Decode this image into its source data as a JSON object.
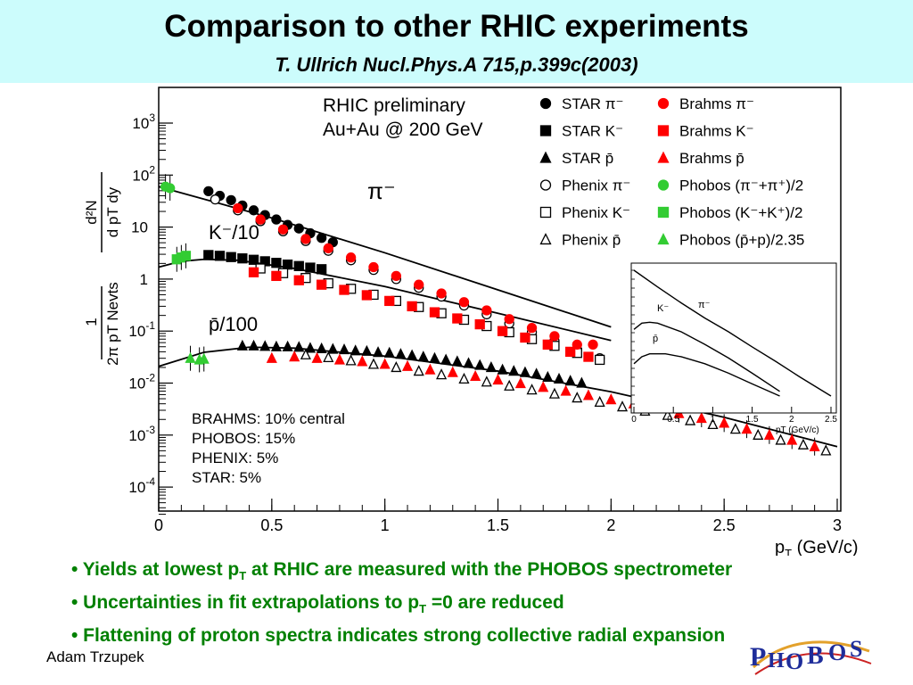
{
  "slide": {
    "title": "Comparison to other RHIC experiments",
    "subtitle": "T. Ullrich Nucl.Phys.A 715,p.399c(2003)",
    "author": "Adam Trzupek",
    "logo_text": "PHOBOS",
    "bullets": [
      {
        "pre": "• Yields at lowest p",
        "sub": "T",
        "post": " at RHIC are measured with the PHOBOS spectrometer"
      },
      {
        "pre": "• Uncertainties in fit extrapolations to p",
        "sub": "T",
        "post": " =0 are reduced"
      },
      {
        "pre": "• Flattening of proton spectra indicates strong collective radial expansion",
        "sub": "",
        "post": ""
      }
    ]
  },
  "chart_data": [
    {
      "type": "scatter",
      "plot_annotations": {
        "main": [
          "RHIC preliminary",
          "Au+Au @ 200 GeV"
        ],
        "centrality": [
          "BRAHMS: 10% central",
          "PHOBOS: 15%",
          "PHENIX:   5%",
          "STAR:       5%"
        ],
        "curve_labels": {
          "pi": "π⁻",
          "k": "K⁻/10",
          "p": "p̄/100"
        }
      },
      "xlabel": "pT (GeV/c)",
      "ylabel": "(1/2π pT Nevts) d²N/(dpT dy)",
      "xlim": [
        0,
        3
      ],
      "ylim": [
        3e-05,
        1500
      ],
      "y_scale": "log",
      "x_ticks": [
        "0",
        "0.5",
        "1",
        "1.5",
        "2",
        "2.5",
        "3"
      ],
      "y_ticks": [
        {
          "v": 1000,
          "b": "10",
          "e": "3"
        },
        {
          "v": 100,
          "b": "10",
          "e": "2"
        },
        {
          "v": 10,
          "b": "10",
          "e": ""
        },
        {
          "v": 1,
          "b": "1",
          "e": ""
        },
        {
          "v": 0.1,
          "b": "10",
          "e": "-1"
        },
        {
          "v": 0.01,
          "b": "10",
          "e": "-2"
        },
        {
          "v": 0.001,
          "b": "10",
          "e": "-3"
        },
        {
          "v": 0.0001,
          "b": "10",
          "e": "-4"
        }
      ],
      "legend_position": "top-right",
      "colors": {
        "star": "#000000",
        "brahms": "#ff0000",
        "phobos": "#33cc33",
        "phenix": "#000000"
      },
      "series": [
        {
          "name": "STAR π⁻",
          "particle": "pi",
          "marker": "circle",
          "color": "#000000",
          "filled": true,
          "x": [
            0.22,
            0.27,
            0.32,
            0.37,
            0.42,
            0.47,
            0.52,
            0.57,
            0.62,
            0.67,
            0.72,
            0.77
          ],
          "y": [
            49,
            40,
            33,
            26,
            21,
            17,
            14,
            11,
            9.4,
            7.6,
            6.2,
            5.1
          ]
        },
        {
          "name": "STAR K⁻",
          "particle": "k",
          "marker": "square",
          "color": "#000000",
          "filled": true,
          "x": [
            0.22,
            0.27,
            0.32,
            0.37,
            0.42,
            0.47,
            0.52,
            0.57,
            0.62,
            0.67,
            0.72
          ],
          "y": [
            2.9,
            2.8,
            2.65,
            2.5,
            2.35,
            2.2,
            2.05,
            1.9,
            1.78,
            1.66,
            1.55
          ]
        },
        {
          "name": "STAR p̄",
          "particle": "p",
          "marker": "triangle",
          "color": "#000000",
          "filled": true,
          "x": [
            0.37,
            0.42,
            0.47,
            0.52,
            0.57,
            0.62,
            0.67,
            0.72,
            0.77,
            0.82,
            0.87,
            0.92,
            0.97,
            1.02,
            1.07,
            1.12,
            1.17,
            1.22,
            1.27,
            1.32,
            1.37,
            1.42,
            1.47,
            1.52,
            1.57,
            1.62,
            1.67,
            1.72,
            1.77,
            1.82,
            1.87
          ],
          "y": [
            0.052,
            0.052,
            0.051,
            0.05,
            0.05,
            0.049,
            0.047,
            0.046,
            0.045,
            0.044,
            0.042,
            0.041,
            0.039,
            0.038,
            0.036,
            0.034,
            0.032,
            0.03,
            0.028,
            0.026,
            0.024,
            0.022,
            0.02,
            0.018,
            0.017,
            0.016,
            0.015,
            0.013,
            0.012,
            0.011,
            0.01
          ]
        },
        {
          "name": "Phenix π⁻",
          "particle": "pi",
          "marker": "circle",
          "color": "#000000",
          "filled": false,
          "x": [
            0.25,
            0.35,
            0.45,
            0.55,
            0.65,
            0.75,
            0.85,
            0.95,
            1.05,
            1.15,
            1.25,
            1.35,
            1.45,
            1.55,
            1.65,
            1.75,
            1.85,
            1.95
          ],
          "y": [
            34,
            21,
            13,
            8.3,
            5.4,
            3.5,
            2.3,
            1.5,
            1.0,
            0.68,
            0.46,
            0.31,
            0.21,
            0.14,
            0.095,
            0.065,
            0.044,
            0.03
          ]
        },
        {
          "name": "Phenix K⁻",
          "particle": "k",
          "marker": "square",
          "color": "#000000",
          "filled": false,
          "x": [
            0.45,
            0.55,
            0.65,
            0.75,
            0.85,
            0.95,
            1.05,
            1.15,
            1.25,
            1.35,
            1.45,
            1.55,
            1.65,
            1.75,
            1.85,
            1.95
          ],
          "y": [
            1.6,
            1.3,
            1.05,
            0.83,
            0.65,
            0.5,
            0.38,
            0.29,
            0.22,
            0.165,
            0.125,
            0.095,
            0.07,
            0.052,
            0.038,
            0.028
          ]
        },
        {
          "name": "Phenix p̄",
          "particle": "p",
          "marker": "triangle",
          "color": "#000000",
          "filled": false,
          "x": [
            0.65,
            0.75,
            0.85,
            0.95,
            1.05,
            1.15,
            1.25,
            1.35,
            1.45,
            1.55,
            1.65,
            1.75,
            1.85,
            1.95,
            2.05,
            2.15,
            2.25,
            2.35,
            2.45,
            2.55,
            2.65,
            2.75,
            2.85,
            2.95
          ],
          "y": [
            0.035,
            0.031,
            0.027,
            0.023,
            0.02,
            0.017,
            0.0145,
            0.012,
            0.0105,
            0.0088,
            0.0074,
            0.0062,
            0.0052,
            0.0043,
            0.0035,
            0.0029,
            0.0024,
            0.0019,
            0.0016,
            0.0013,
            0.001,
            0.0008,
            0.00065,
            0.0005
          ]
        },
        {
          "name": "Brahms π⁻",
          "particle": "pi",
          "marker": "circle",
          "color": "#ff0000",
          "filled": true,
          "x": [
            0.35,
            0.45,
            0.55,
            0.65,
            0.75,
            0.85,
            0.95,
            1.05,
            1.15,
            1.25,
            1.35,
            1.45,
            1.55,
            1.65,
            1.75,
            1.85,
            1.92
          ],
          "y": [
            23,
            14,
            9.0,
            5.9,
            3.9,
            2.6,
            1.7,
            1.15,
            0.78,
            0.53,
            0.36,
            0.25,
            0.17,
            0.115,
            0.08,
            0.055,
            0.055
          ]
        },
        {
          "name": "Brahms K⁻",
          "particle": "k",
          "marker": "square",
          "color": "#ff0000",
          "filled": true,
          "x": [
            0.42,
            0.52,
            0.62,
            0.72,
            0.82,
            0.92,
            1.02,
            1.12,
            1.22,
            1.32,
            1.42,
            1.52,
            1.62,
            1.72,
            1.82,
            1.9
          ],
          "y": [
            1.35,
            1.15,
            0.95,
            0.78,
            0.62,
            0.49,
            0.38,
            0.3,
            0.23,
            0.175,
            0.135,
            0.1,
            0.075,
            0.055,
            0.04,
            0.032
          ]
        },
        {
          "name": "Brahms p̄",
          "particle": "p",
          "marker": "triangle",
          "color": "#ff0000",
          "filled": true,
          "x": [
            0.5,
            0.6,
            0.7,
            0.8,
            0.9,
            1.0,
            1.1,
            1.2,
            1.3,
            1.4,
            1.5,
            1.6,
            1.7,
            1.8,
            1.9,
            2.0,
            2.1,
            2.2,
            2.3,
            2.4,
            2.5,
            2.6,
            2.7,
            2.8,
            2.9
          ],
          "y": [
            0.03,
            0.032,
            0.03,
            0.028,
            0.026,
            0.023,
            0.021,
            0.018,
            0.016,
            0.0135,
            0.0115,
            0.0098,
            0.0083,
            0.007,
            0.0058,
            0.0048,
            0.004,
            0.0032,
            0.0026,
            0.0021,
            0.0017,
            0.0013,
            0.001,
            0.0008,
            0.0006
          ]
        },
        {
          "name": "Phobos (π⁻+π⁺)/2",
          "particle": "pi",
          "marker": "circle",
          "color": "#33cc33",
          "filled": true,
          "x": [
            0.03,
            0.05
          ],
          "y": [
            60,
            56
          ]
        },
        {
          "name": "Phobos (K⁻+K⁺)/2",
          "particle": "k",
          "marker": "square",
          "color": "#33cc33",
          "filled": true,
          "x": [
            0.08,
            0.1,
            0.12
          ],
          "y": [
            2.4,
            2.6,
            2.8
          ]
        },
        {
          "name": "Phobos (p̄+p)/2.35",
          "particle": "p",
          "marker": "triangle",
          "color": "#33cc33",
          "filled": true,
          "x": [
            0.14,
            0.18,
            0.2
          ],
          "y": [
            0.03,
            0.028,
            0.029
          ]
        }
      ],
      "fits": [
        {
          "particle": "pi",
          "x": [
            0,
            0.25,
            0.5,
            1.0,
            1.5,
            2.0
          ],
          "y": [
            60,
            30,
            15,
            3.2,
            0.62,
            0.12
          ]
        },
        {
          "particle": "k",
          "x": [
            0,
            0.1,
            0.2,
            0.35,
            0.6,
            1.0,
            1.5,
            2.0
          ],
          "y": [
            1.7,
            2.2,
            2.4,
            2.3,
            1.6,
            0.72,
            0.22,
            0.066
          ]
        },
        {
          "particle": "p",
          "x": [
            0,
            0.2,
            0.4,
            0.6,
            1.0,
            1.5,
            2.0,
            2.5,
            3.0
          ],
          "y": [
            0.021,
            0.039,
            0.049,
            0.047,
            0.033,
            0.017,
            0.0068,
            0.0022,
            0.0006
          ]
        }
      ]
    },
    {
      "type": "line",
      "xlabel": "pT (GeV/c)",
      "x_ticks": [
        "0",
        "0.5",
        "1",
        "1.5",
        "2",
        "2.5"
      ],
      "xlim": [
        0,
        2.5
      ],
      "y_scale": "log",
      "curve_labels": {
        "pi": "π⁻",
        "k": "K⁻",
        "p": "p̄"
      },
      "series": [
        {
          "particle": "pi",
          "x": [
            0,
            0.3,
            0.6,
            0.9,
            1.2,
            1.5,
            1.8,
            2.1,
            2.5
          ],
          "y": [
            1,
            0.55,
            0.31,
            0.18,
            0.11,
            0.064,
            0.038,
            0.022,
            0.011
          ]
        },
        {
          "particle": "k",
          "x": [
            0,
            0.1,
            0.2,
            0.3,
            0.6,
            0.9,
            1.2,
            1.5,
            1.85
          ],
          "y": [
            0.12,
            0.15,
            0.155,
            0.15,
            0.11,
            0.07,
            0.043,
            0.025,
            0.013
          ]
        },
        {
          "particle": "p",
          "x": [
            0,
            0.1,
            0.2,
            0.4,
            0.6,
            0.9,
            1.2,
            1.5,
            1.85
          ],
          "y": [
            0.035,
            0.045,
            0.05,
            0.05,
            0.045,
            0.035,
            0.025,
            0.017,
            0.011
          ]
        }
      ]
    }
  ]
}
